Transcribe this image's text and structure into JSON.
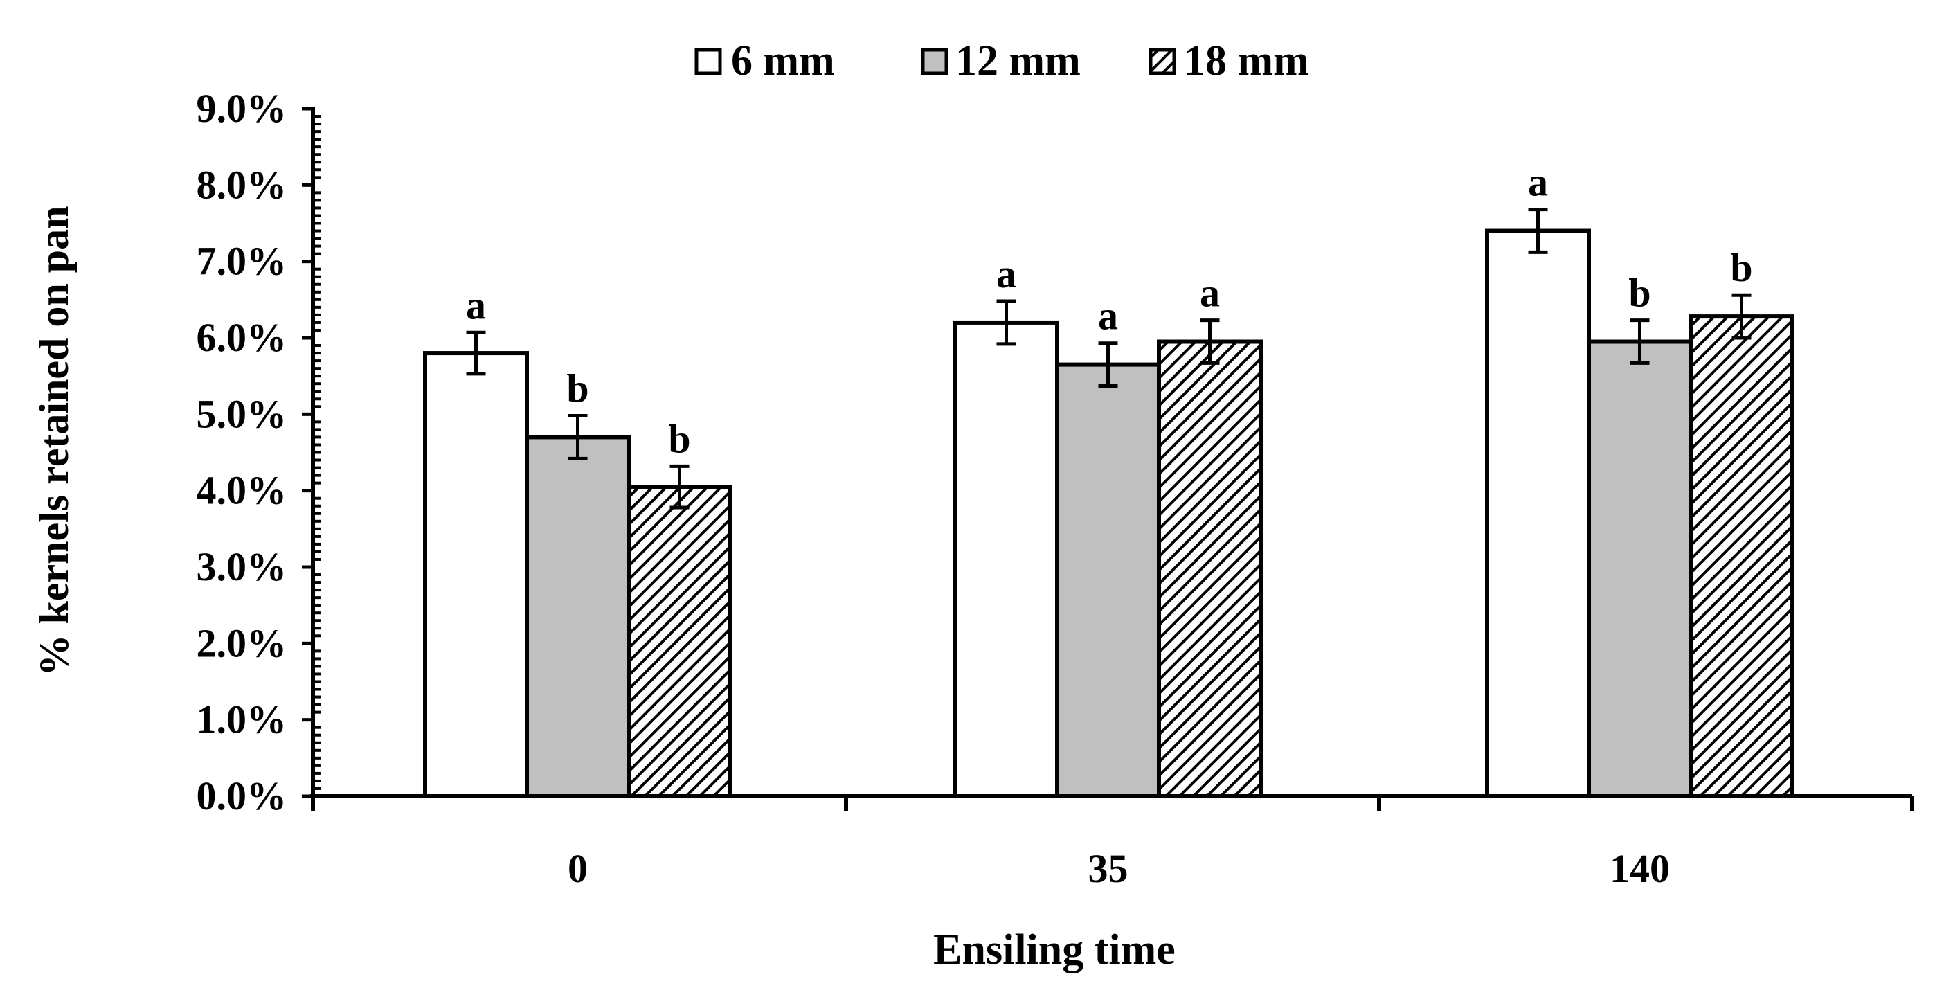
{
  "chart_data": {
    "type": "bar",
    "title": "",
    "xlabel": "Ensiling time",
    "ylabel": "% kernels retained on pan",
    "categories": [
      "0",
      "35",
      "140"
    ],
    "ylim": [
      0,
      9.0
    ],
    "ytick_values": [
      0,
      1,
      2,
      3,
      4,
      5,
      6,
      7,
      8,
      9
    ],
    "ytick_labels": [
      "0.0%",
      "1.0%",
      "2.0%",
      "3.0%",
      "4.0%",
      "5.0%",
      "6.0%",
      "7.0%",
      "8.0%",
      "9.0%"
    ],
    "grid": false,
    "legend_position": "top-center",
    "series": [
      {
        "name": "6 mm",
        "fill": "white",
        "values": [
          5.8,
          6.2,
          7.4
        ],
        "errors": [
          0.27,
          0.28,
          0.28
        ],
        "letters": [
          "a",
          "a",
          "a"
        ]
      },
      {
        "name": "12 mm",
        "fill": "gray",
        "values": [
          4.7,
          5.65,
          5.95
        ],
        "errors": [
          0.28,
          0.28,
          0.28
        ],
        "letters": [
          "b",
          "a",
          "b"
        ]
      },
      {
        "name": "18 mm",
        "fill": "hatched",
        "values": [
          4.05,
          5.95,
          6.28
        ],
        "errors": [
          0.27,
          0.28,
          0.28
        ],
        "letters": [
          "b",
          "a",
          "b"
        ]
      }
    ]
  },
  "colors": {
    "gray_fill": "#c0c0c0",
    "axis": "#000000",
    "white_fill": "#ffffff"
  }
}
